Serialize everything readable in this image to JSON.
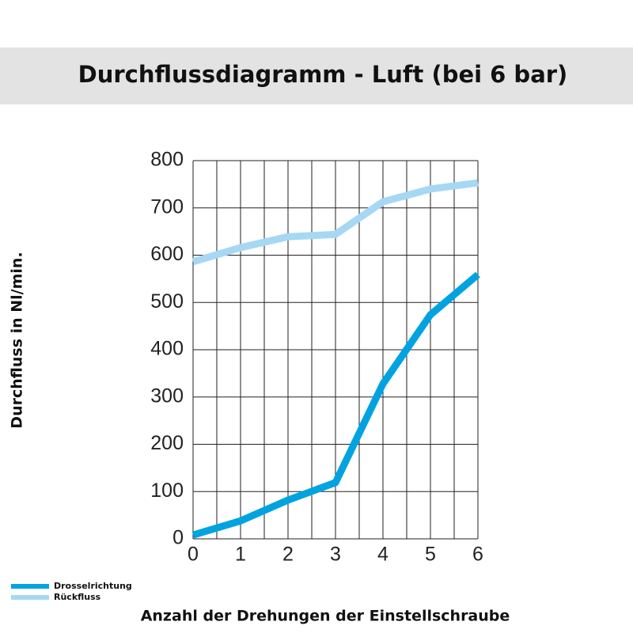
{
  "chart_data": {
    "type": "line",
    "title": "Durchflussdiagramm - Luft (bei 6 bar)",
    "x_label": "Anzahl der Drehungen der Einstellschraube",
    "y_label": "Durchfluss in Nl/min.",
    "x": [
      0,
      1,
      2,
      3,
      4,
      5,
      6
    ],
    "series": [
      {
        "name": "Drosselrichtung",
        "color": "#00a3e0",
        "values": [
          8,
          38,
          82,
          119,
          328,
          474,
          559
        ]
      },
      {
        "name": "Rückfluss",
        "color": "#a6d8f4",
        "values": [
          586,
          616,
          639,
          644,
          713,
          740,
          753
        ]
      }
    ],
    "xlim": [
      0,
      6
    ],
    "xticks": [
      0,
      1,
      2,
      3,
      4,
      5,
      6
    ],
    "ylim": [
      0,
      800
    ],
    "yticks": [
      0,
      100,
      200,
      300,
      400,
      500,
      600,
      700,
      800
    ],
    "grid": true,
    "legend": "bottom-left"
  }
}
